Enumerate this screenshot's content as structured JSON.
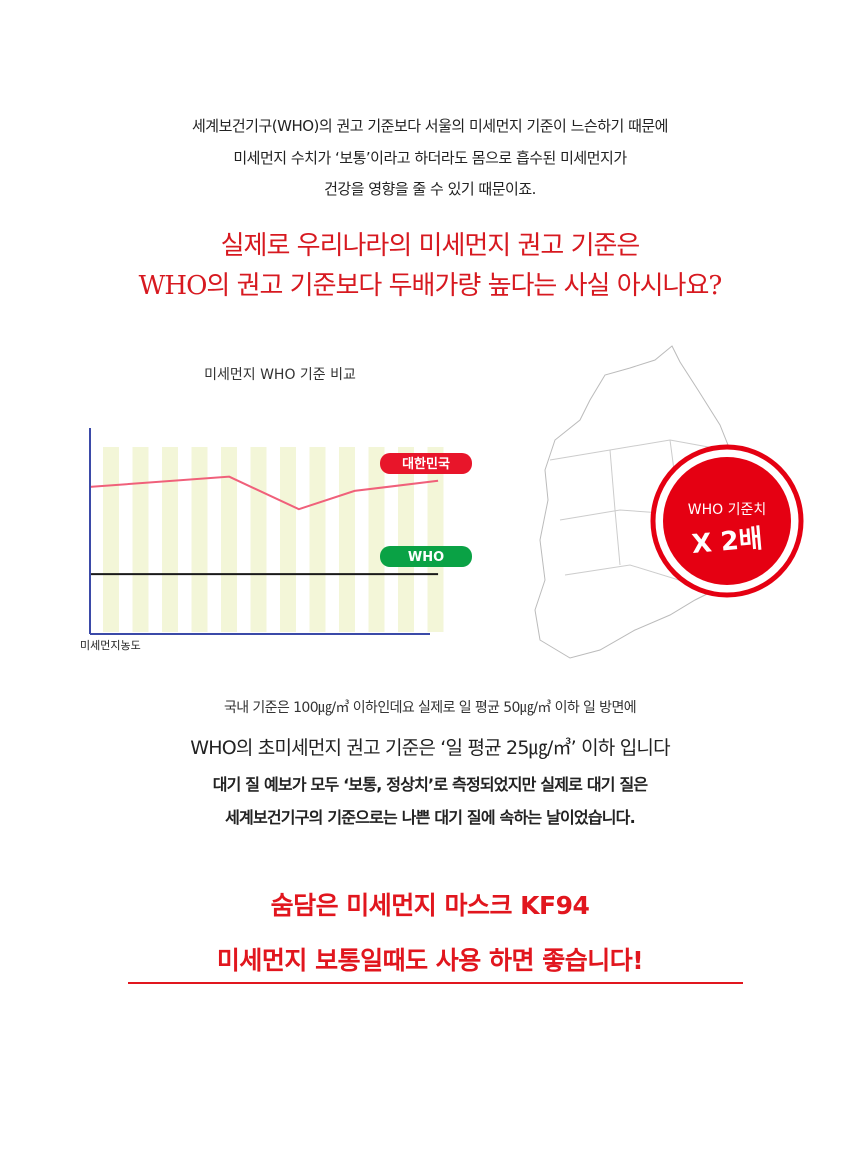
{
  "intro": [
    "세계보건기구(WHO)의 권고 기준보다 서울의 미세먼지 기준이 느슨하기 때문에",
    "미세먼지 수치가 ‘보통’이라고 하더라도 몸으로 흡수된 미세먼지가",
    "건강을 영향을 줄 수 있기 때문이죠."
  ],
  "headline": [
    "실제로 우리나라의 미세먼지 권고 기준은",
    "WHO의 권고 기준보다 두배가량 높다는 사실 아시나요?"
  ],
  "chart_data": {
    "type": "line",
    "title": "미세먼지 WHO 기준 비교",
    "ylabel": "미세먼지농도",
    "xlim": [
      0,
      13
    ],
    "ylim": [
      0,
      100
    ],
    "grid": "vertical stripes",
    "series": [
      {
        "name": "대한민국",
        "color": "#f0607a",
        "x": [
          0,
          5,
          7.5,
          9.5,
          12.5
        ],
        "y": [
          72,
          77,
          61,
          70,
          75
        ],
        "label_color": "#e8152a"
      },
      {
        "name": "WHO",
        "color": "#1a1a1a",
        "x": [
          0,
          12.5
        ],
        "y": [
          29,
          29
        ],
        "label_color": "#0aa245"
      }
    ],
    "axis_color": "#3b4aa8",
    "stripe_color": "#f3f6d8"
  },
  "badge": {
    "line1": "WHO 기준치",
    "line2": "X 2배",
    "color": "#e50012"
  },
  "body": [
    "국내 기준은 100㎍/㎥ 이하인데요 실제로 일 평균 50㎍/㎥ 이하 일 방면에",
    "WHO의 초미세먼지 권고 기준은 ‘일 평균 25㎍/㎥’ 이하 입니다",
    "대기 질 예보가 모두 ‘보통, 정상치’로 측정되었지만 실제로 대기 질은",
    "세계보건기구의 기준으로는 나쁜 대기 질에 속하는 날이었습니다."
  ],
  "cta": [
    "숨담은 미세먼지 마스크 KF94",
    "미세먼지 보통일때도 사용 하면 좋습니다!"
  ]
}
